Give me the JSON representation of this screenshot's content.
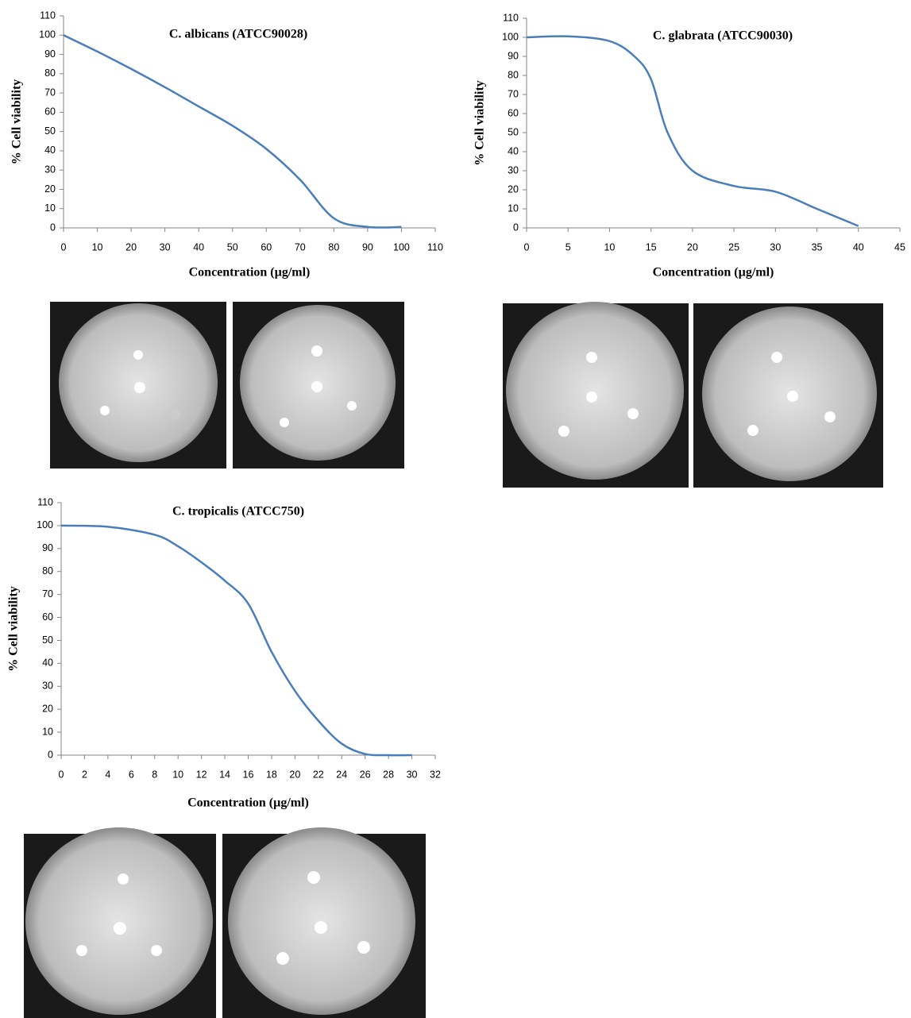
{
  "chart_data": [
    {
      "type": "line",
      "title": "C. albicans (ATCC90028)",
      "x_label": "Concentration (µg/ml)",
      "y_label": "% Cell viability",
      "x": [
        0,
        10,
        20,
        30,
        40,
        50,
        60,
        70,
        80,
        90,
        100
      ],
      "series": [
        {
          "color": "#4a7ebb",
          "values": [
            100,
            91.5,
            82.5,
            73,
            63,
            53,
            41,
            25,
            5,
            0.5,
            0.5
          ]
        }
      ],
      "xlim": [
        0,
        110
      ],
      "xticks": [
        0,
        10,
        20,
        30,
        40,
        50,
        60,
        70,
        80,
        90,
        100,
        110
      ],
      "ylim": [
        0,
        110
      ],
      "yticks": [
        0,
        10,
        20,
        30,
        40,
        50,
        60,
        70,
        80,
        90,
        100,
        110
      ]
    },
    {
      "type": "line",
      "title": "C. glabrata (ATCC90030)",
      "x_label": "Concentration (µg/ml)",
      "y_label": "% Cell viability",
      "x": [
        0,
        5,
        10,
        13,
        15,
        17,
        20,
        25,
        30,
        35,
        40
      ],
      "series": [
        {
          "color": "#4a7ebb",
          "values": [
            100,
            100.5,
            98,
            90,
            78,
            50,
            30,
            22,
            19,
            10,
            1
          ]
        }
      ],
      "xlim": [
        0,
        45
      ],
      "xticks": [
        0,
        5,
        10,
        15,
        20,
        25,
        30,
        35,
        40,
        45
      ],
      "ylim": [
        0,
        110
      ],
      "yticks": [
        0,
        10,
        20,
        30,
        40,
        50,
        60,
        70,
        80,
        90,
        100,
        110
      ]
    },
    {
      "type": "line",
      "title": "C. tropicalis (ATCC750)",
      "x_label": "Concentration (µg/ml)",
      "y_label": "% Cell viability",
      "x": [
        0,
        4,
        8,
        10,
        12,
        14,
        16,
        18,
        20,
        22,
        24,
        26,
        28,
        30
      ],
      "series": [
        {
          "color": "#4a7ebb",
          "values": [
            100,
            99.5,
            96,
            91,
            84,
            76,
            66,
            45,
            28,
            15,
            5,
            0.5,
            0,
            0
          ]
        }
      ],
      "xlim": [
        0,
        32
      ],
      "xticks": [
        0,
        2,
        4,
        6,
        8,
        10,
        12,
        14,
        16,
        18,
        20,
        22,
        24,
        26,
        28,
        30,
        32
      ],
      "ylim": [
        0,
        110
      ],
      "yticks": [
        0,
        10,
        20,
        30,
        40,
        50,
        60,
        70,
        80,
        90,
        100,
        110
      ]
    }
  ]
}
